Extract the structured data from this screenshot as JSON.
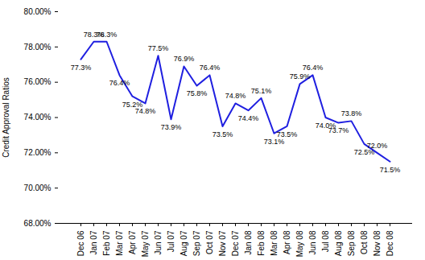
{
  "chart_data": {
    "type": "line",
    "y_label": "Credit Approval Ratios",
    "categories": [
      "Dec 06",
      "Jan 07",
      "Feb 07",
      "Mar 07",
      "Apr 07",
      "May 07",
      "Jun 07",
      "Jul 07",
      "Aug 07",
      "Sep 07",
      "Oct 07",
      "Nov 07",
      "Dec 07",
      "Jan 08",
      "Feb 08",
      "Mar 08",
      "Apr 08",
      "May 08",
      "Jun 08",
      "Jul 08",
      "Aug 08",
      "Sep 08",
      "Oct 08",
      "Nov 08",
      "Dec 08"
    ],
    "values": [
      77.3,
      78.3,
      78.3,
      76.4,
      75.2,
      74.8,
      77.5,
      73.9,
      76.9,
      75.8,
      76.4,
      73.5,
      74.8,
      74.4,
      75.1,
      73.1,
      73.5,
      75.9,
      76.4,
      74.0,
      73.7,
      73.8,
      72.5,
      72.0,
      71.5
    ],
    "value_labels": [
      "77.3%",
      "78.3%",
      "78.3%",
      "76.4%",
      "75.2%",
      "74.8%",
      "77.5%",
      "73.9%",
      "76.9%",
      "75.8%",
      "76.4%",
      "73.5%",
      "74.8%",
      "74.4%",
      "75.1%",
      "73.1%",
      "73.5%",
      "75.9%",
      "76.4%",
      "74.0%",
      "73.7%",
      "73.8%",
      "72.5%",
      "72.0%",
      "71.5%"
    ],
    "color": "#1f1fe0",
    "ylim": [
      68,
      80
    ],
    "yticks": [
      {
        "value": 68,
        "label": "68.00%"
      },
      {
        "value": 70,
        "label": "70.00%"
      },
      {
        "value": 72,
        "label": "72.00%"
      },
      {
        "value": 74,
        "label": "74.00%"
      },
      {
        "value": 76,
        "label": "76.00%"
      },
      {
        "value": 78,
        "label": "78.00%"
      },
      {
        "value": 80,
        "label": "80.00%"
      }
    ],
    "grid": false,
    "data_labels": true
  }
}
